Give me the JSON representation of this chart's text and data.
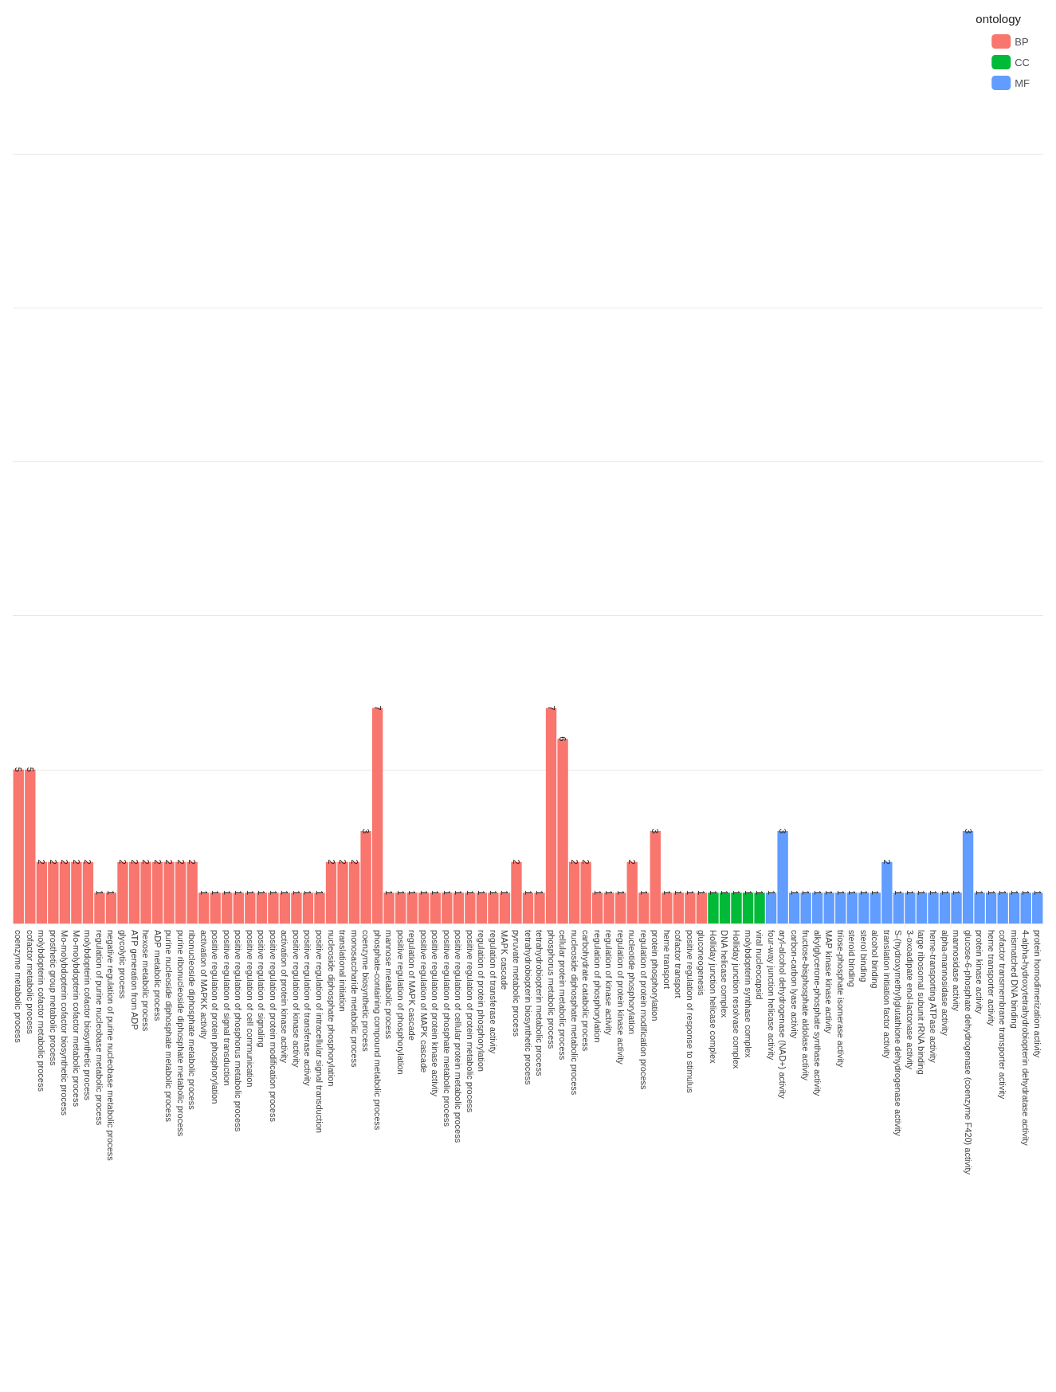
{
  "chart_data": {
    "type": "bar",
    "legend_title": "ontology",
    "legend": "top right",
    "grid": "y",
    "data_labels": true,
    "stacked": true,
    "ylim": [
      0,
      25
    ],
    "yticks": [
      {
        "value": 0,
        "label": null
      },
      {
        "value": 5,
        "label": null
      },
      {
        "value": 10,
        "label": null
      },
      {
        "value": 15,
        "label": null
      },
      {
        "value": 20,
        "label": null
      },
      {
        "value": 25,
        "label": null
      }
    ],
    "tick_labels": "x",
    "categories": [
      "coenzyme metabolic process",
      "cofactor metabolic process",
      "molybdopterin cofactor metabolic process",
      "prosthetic group metabolic process",
      "Mo-molybdopterin cofactor biosynthetic process",
      "Mo-molybdopterin cofactor metabolic process",
      "molybdopterin cofactor biosynthetic process",
      "regulation of purine nucleobase metabolic process",
      "negative regulation of purine nucleobase metabolic process",
      "glycolytic process",
      "ATP generation from ADP",
      "hexose metabolic process",
      "ADP metabolic process",
      "purine nucleoside diphosphate metabolic process",
      "purine ribonucleoside diphosphate metabolic process",
      "ribonucleoside diphosphate metabolic process",
      "activation of MAPKK activity",
      "positive regulation of protein phosphorylation",
      "positive regulation of signal transduction",
      "positive regulation of phosphorus metabolic process",
      "positive regulation of cell communication",
      "positive regulation of signaling",
      "positive regulation of protein modification process",
      "activation of protein kinase activity",
      "positive regulation of kinase activity",
      "positive regulation of transferase activity",
      "positive regulation of intracellular signal transduction",
      "nucleoside diphosphate phosphorylation",
      "translational initiation",
      "monosaccharide metabolic process",
      "coenzyme biosynthetic process",
      "phosphate-containing compound metabolic process",
      "mannose metabolic process",
      "positive regulation of phosphorylation",
      "regulation of MAPK cascade",
      "positive regulation of MAPK cascade",
      "positive regulation of protein kinase activity",
      "positive regulation of phosphate metabolic process",
      "positive regulation of cellular protein metabolic process",
      "positive regulation of protein metabolic process",
      "regulation of protein phosphorylation",
      "regulation of transferase activity",
      "MAPK cascade",
      "pyruvate metabolic process",
      "tetrahydrobiopterin biosynthetic process",
      "tetrahydrobiopterin metabolic process",
      "phosphorus metabolic process",
      "cellular protein metabolic process",
      "nucleoside diphosphate metabolic process",
      "carbohydrate catabolic process",
      "regulation of phosphorylation",
      "regulation of kinase activity",
      "regulation of protein kinase activity",
      "nucleotide phosphorylation",
      "regulation of protein modification process",
      "protein phosphorylation",
      "heme transport",
      "cofactor transport",
      "positive regulation of response to stimulus",
      "gluconeogenesis",
      "Holliday junction helicase complex",
      "DNA helicase complex",
      "Holliday junction resolvase complex",
      "molybdopterin synthase complex",
      "viral nucleocapsid",
      "four-way junction helicase activity",
      "aryl-alcohol dehydrogenase (NAD+) activity",
      "carbon-carbon lyase activity",
      "fructose-bisphosphate aldolase activity",
      "alkylglycerone-phosphate synthase activity",
      "MAP kinase kinase activity",
      "triose-phosphate isomerase activity",
      "steroid binding",
      "sterol binding",
      "alcohol binding",
      "translation initiation factor activity",
      "S-(hydroxymethyl)glutathione dehydrogenase activity",
      "3-oxoadipate enol-lactonase activity",
      "large ribosomal subunit rRNA binding",
      "heme-transporting ATPase activity",
      "alpha-mannosidase activity",
      "mannosidase activity",
      "glucose-6-phosphate dehydrogenase (coenzyme F420) activity",
      "protein kinase activity",
      "heme transporter activity",
      "cofactor transmembrane transporter activity",
      "mismatched DNA binding",
      "4-alpha-hydroxytetrahydrobiopterin dehydratase activity",
      "protein homodimerization activity"
    ],
    "series": [
      {
        "name": "BP",
        "color": "#f8766d",
        "values": [
          5,
          5,
          2,
          2,
          2,
          2,
          2,
          1,
          1,
          2,
          2,
          2,
          2,
          2,
          2,
          2,
          1,
          1,
          1,
          1,
          1,
          1,
          1,
          1,
          1,
          1,
          1,
          2,
          2,
          2,
          3,
          7,
          1,
          1,
          1,
          1,
          1,
          1,
          1,
          1,
          1,
          1,
          1,
          2,
          1,
          1,
          7,
          6,
          2,
          2,
          1,
          1,
          1,
          2,
          1,
          3,
          1,
          1,
          1,
          1,
          null,
          null,
          null,
          null,
          null,
          null,
          null,
          null,
          null,
          null,
          null,
          null,
          null,
          null,
          null,
          null,
          null,
          null,
          null,
          null,
          null,
          null,
          null,
          null,
          null,
          null,
          null,
          null,
          null
        ]
      },
      {
        "name": "CC",
        "color": "#00ba38",
        "values": [
          null,
          null,
          null,
          null,
          null,
          null,
          null,
          null,
          null,
          null,
          null,
          null,
          null,
          null,
          null,
          null,
          null,
          null,
          null,
          null,
          null,
          null,
          null,
          null,
          null,
          null,
          null,
          null,
          null,
          null,
          null,
          null,
          null,
          null,
          null,
          null,
          null,
          null,
          null,
          null,
          null,
          null,
          null,
          null,
          null,
          null,
          null,
          null,
          null,
          null,
          null,
          null,
          null,
          null,
          null,
          null,
          null,
          null,
          null,
          null,
          1,
          1,
          1,
          1,
          1,
          null,
          null,
          null,
          null,
          null,
          null,
          null,
          null,
          null,
          null,
          null,
          null,
          null,
          null,
          null,
          null,
          null,
          null,
          null,
          null,
          null,
          null,
          null,
          null
        ]
      },
      {
        "name": "MF",
        "color": "#619cff",
        "values": [
          null,
          null,
          null,
          null,
          null,
          null,
          null,
          null,
          null,
          null,
          null,
          null,
          null,
          null,
          null,
          null,
          null,
          null,
          null,
          null,
          null,
          null,
          null,
          null,
          null,
          null,
          null,
          null,
          null,
          null,
          null,
          null,
          null,
          null,
          null,
          null,
          null,
          null,
          null,
          null,
          null,
          null,
          null,
          null,
          null,
          null,
          null,
          null,
          null,
          null,
          null,
          null,
          null,
          null,
          null,
          null,
          null,
          null,
          null,
          null,
          null,
          null,
          null,
          null,
          null,
          1,
          3,
          1,
          1,
          1,
          1,
          1,
          1,
          1,
          1,
          2,
          1,
          1,
          1,
          1,
          1,
          1,
          3,
          1,
          1,
          1,
          1,
          1,
          1
        ]
      }
    ]
  }
}
